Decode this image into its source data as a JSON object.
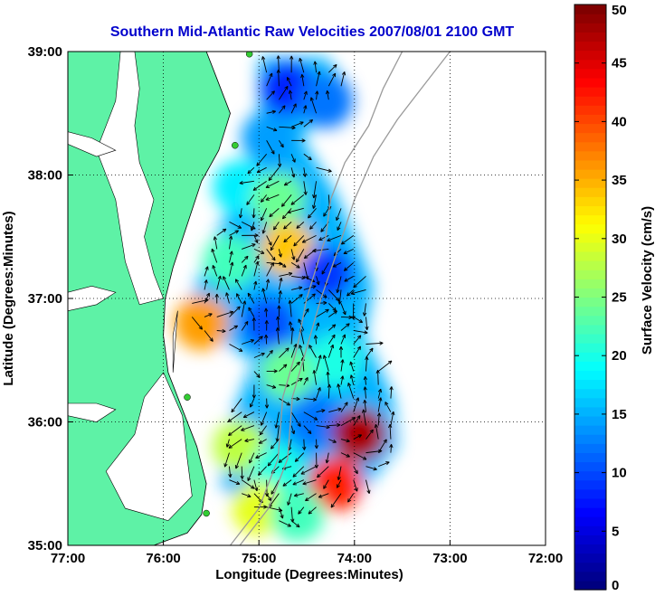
{
  "title": "Southern Mid-Atlantic Raw Velocities 2007/08/01 2100 GMT",
  "x_axis": {
    "label": "Longitude (Degrees:Minutes)",
    "ticks": [
      {
        "value": -77,
        "label": "77:00"
      },
      {
        "value": -76,
        "label": "76:00"
      },
      {
        "value": -75,
        "label": "75:00"
      },
      {
        "value": -74,
        "label": "74:00"
      },
      {
        "value": -73,
        "label": "73:00"
      },
      {
        "value": -72,
        "label": "72:00"
      }
    ],
    "range": [
      -77,
      -72
    ]
  },
  "y_axis": {
    "label": "Latitude (Degrees:Minutes)",
    "ticks": [
      {
        "value": 35,
        "label": "35:00"
      },
      {
        "value": 36,
        "label": "36:00"
      },
      {
        "value": 37,
        "label": "37:00"
      },
      {
        "value": 38,
        "label": "38:00"
      },
      {
        "value": 39,
        "label": "39:00"
      }
    ],
    "range": [
      35,
      39
    ]
  },
  "colorbar": {
    "label": "Surface Velocity (cm/s)",
    "range": [
      0,
      50
    ],
    "ticks": [
      {
        "value": 0,
        "label": "0"
      },
      {
        "value": 5,
        "label": "5"
      },
      {
        "value": 10,
        "label": "10"
      },
      {
        "value": 15,
        "label": "15"
      },
      {
        "value": 20,
        "label": "20"
      },
      {
        "value": 25,
        "label": "25"
      },
      {
        "value": 30,
        "label": "30"
      },
      {
        "value": 35,
        "label": "35"
      },
      {
        "value": 40,
        "label": "40"
      },
      {
        "value": 45,
        "label": "45"
      },
      {
        "value": 50,
        "label": "50"
      }
    ],
    "colormap": "jet"
  },
  "colors": {
    "land": "#5ef2a6",
    "title": "#0000cc",
    "isobath": "#9a9a9a",
    "arrows": "#000000",
    "grid": "#000000",
    "station": "#33cc33"
  },
  "grid": "dotted",
  "velocity_field": {
    "units": "cm/s",
    "regions": [
      {
        "lon": -74.7,
        "lat": 38.7,
        "speed": 8
      },
      {
        "lon": -74.3,
        "lat": 38.6,
        "speed": 12
      },
      {
        "lon": -74.9,
        "lat": 38.3,
        "speed": 14
      },
      {
        "lon": -75.2,
        "lat": 37.9,
        "speed": 18
      },
      {
        "lon": -74.8,
        "lat": 37.8,
        "speed": 24
      },
      {
        "lon": -74.7,
        "lat": 37.4,
        "speed": 34
      },
      {
        "lon": -75.3,
        "lat": 37.3,
        "speed": 22
      },
      {
        "lon": -74.3,
        "lat": 37.2,
        "speed": 9
      },
      {
        "lon": -74.9,
        "lat": 36.8,
        "speed": 10
      },
      {
        "lon": -75.6,
        "lat": 36.8,
        "speed": 36
      },
      {
        "lon": -74.2,
        "lat": 36.5,
        "speed": 20
      },
      {
        "lon": -74.7,
        "lat": 36.4,
        "speed": 24
      },
      {
        "lon": -74.4,
        "lat": 36.0,
        "speed": 12
      },
      {
        "lon": -73.95,
        "lat": 35.9,
        "speed": 48
      },
      {
        "lon": -75.2,
        "lat": 35.8,
        "speed": 28
      },
      {
        "lon": -74.8,
        "lat": 35.6,
        "speed": 20
      },
      {
        "lon": -74.2,
        "lat": 35.5,
        "speed": 42
      },
      {
        "lon": -75.0,
        "lat": 35.3,
        "speed": 30
      },
      {
        "lon": -74.6,
        "lat": 35.25,
        "speed": 22
      }
    ]
  }
}
